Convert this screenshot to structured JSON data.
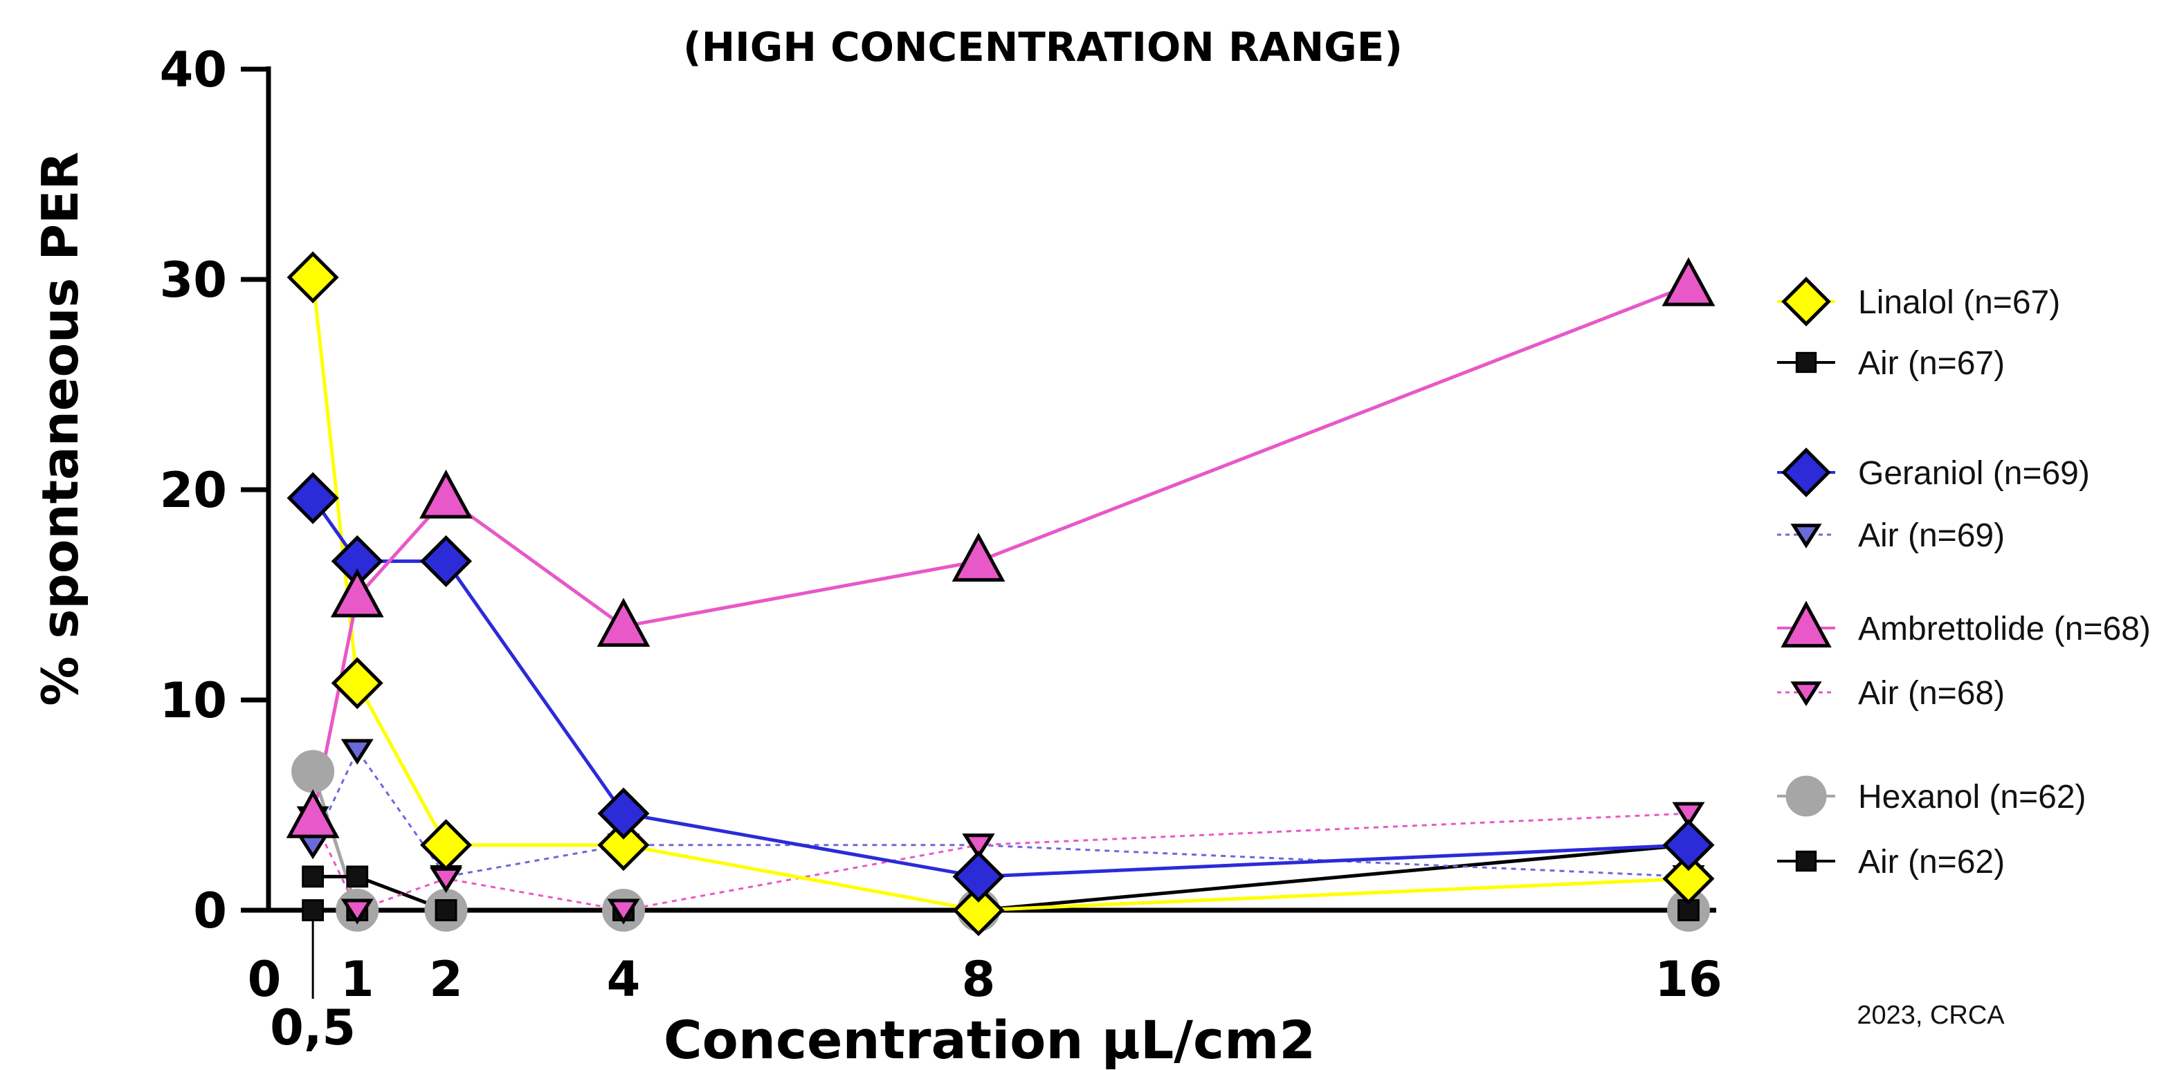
{
  "chart_data": {
    "type": "line",
    "title": "(HIGH CONCENTRATION RANGE)",
    "xlabel": "Concentration µL/cm2",
    "ylabel": "% spontaneous PER",
    "ylim": [
      0,
      40
    ],
    "yticks": [
      0,
      10,
      20,
      30,
      40
    ],
    "xticks": [
      {
        "value": 0,
        "label": "0"
      },
      {
        "value": 0.5,
        "label": "0,5"
      },
      {
        "value": 1,
        "label": "1"
      },
      {
        "value": 2,
        "label": "2"
      },
      {
        "value": 4,
        "label": "4"
      },
      {
        "value": 8,
        "label": "8"
      },
      {
        "value": 16,
        "label": "16"
      }
    ],
    "grid": false,
    "legend_position": "right",
    "series": [
      {
        "name": "Linalol (n=67)",
        "color": "#ffff00",
        "marker": "diamond",
        "line": "solid",
        "x": [
          0.5,
          1,
          2,
          4,
          8,
          16
        ],
        "values": [
          30.1,
          10.8,
          3.1,
          3.1,
          0,
          1.5
        ]
      },
      {
        "name": "Air (n=67)",
        "color": "#000000",
        "marker": "square",
        "line": "solid",
        "x": [
          0.5,
          1,
          2,
          4,
          8,
          16
        ],
        "values": [
          0,
          0,
          0,
          0,
          0,
          0
        ]
      },
      {
        "name": "Geraniol (n=69)",
        "color": "#2b2bd8",
        "marker": "diamond",
        "line": "solid",
        "x": [
          0.5,
          1,
          2,
          4,
          8,
          16
        ],
        "values": [
          19.6,
          16.6,
          16.6,
          4.6,
          1.6,
          3.1
        ]
      },
      {
        "name": "Air (n=69)",
        "color": "#6a6ad8",
        "marker": "triangle-down",
        "line": "dotted",
        "x": [
          0.5,
          1,
          2,
          4,
          8,
          16
        ],
        "values": [
          3.1,
          7.6,
          1.6,
          3.1,
          3.1,
          1.6
        ]
      },
      {
        "name": "Ambrettolide (n=68)",
        "color": "#e858c8",
        "marker": "triangle-up",
        "line": "solid",
        "x": [
          0.5,
          1,
          2,
          4,
          8,
          16
        ],
        "values": [
          4.4,
          14.9,
          19.6,
          13.5,
          16.6,
          29.7
        ]
      },
      {
        "name": "Air (n=68)",
        "color": "#e858c8",
        "marker": "triangle-down",
        "line": "dotted",
        "x": [
          0.5,
          1,
          2,
          4,
          8,
          16
        ],
        "values": [
          4.4,
          0,
          1.5,
          0,
          3.1,
          4.6
        ]
      },
      {
        "name": "Hexanol (n=62)",
        "color": "#a6a6a6",
        "marker": "circle",
        "line": "solid",
        "x": [
          0.5,
          1,
          2,
          4,
          8,
          16
        ],
        "values": [
          6.6,
          0,
          0,
          0,
          0,
          0
        ]
      },
      {
        "name": "Air (n=62)",
        "color": "#000000",
        "marker": "square",
        "line": "solid",
        "x": [
          0.5,
          1,
          2,
          4,
          8,
          16
        ],
        "values": [
          1.6,
          1.6,
          0,
          0,
          0,
          3.1
        ]
      }
    ]
  },
  "credit": "2023, CRCA"
}
